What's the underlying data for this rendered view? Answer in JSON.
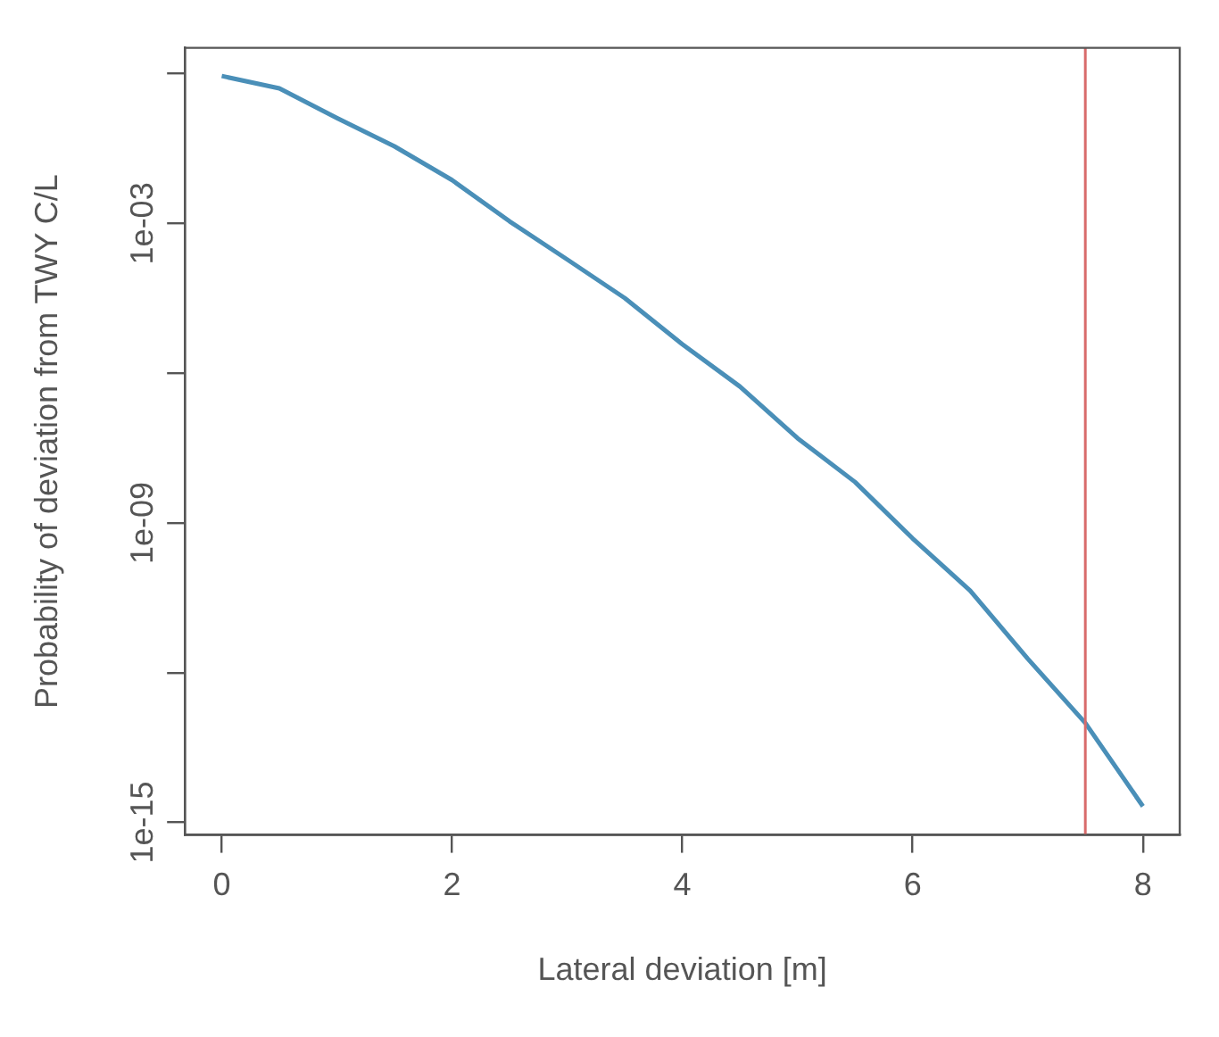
{
  "chart_data": {
    "type": "line",
    "xlabel": "Lateral deviation [m]",
    "ylabel": "Probability of deviation from TWY C/L",
    "x": [
      0,
      0.5,
      1,
      1.5,
      2,
      2.5,
      3,
      3.5,
      4,
      4.5,
      5,
      5.5,
      6,
      6.5,
      7,
      7.5,
      8
    ],
    "series": [
      {
        "color": "#4a8fb8",
        "values": [
          0.9,
          0.51,
          0.13,
          0.035,
          0.0074,
          0.0011,
          0.00019,
          3.2e-05,
          3.8e-06,
          5.4e-07,
          5e-08,
          6.6e-09,
          4.9e-10,
          4.4e-11,
          1.9e-12,
          9.8e-14,
          2.1e-15
        ]
      }
    ],
    "log": "y",
    "xlim": [
      -0.32,
      8.32
    ],
    "xticks": [
      0,
      2,
      4,
      6,
      8
    ],
    "ylim": [
      5.6e-16,
      3.3
    ],
    "yticks": [
      {
        "value": 1,
        "label": null
      },
      {
        "value": 0.001,
        "label": "1e-03"
      },
      {
        "value": 1e-06,
        "label": null
      },
      {
        "value": 1e-09,
        "label": "1e-09"
      },
      {
        "value": 1e-12,
        "label": null
      },
      {
        "value": 1e-15,
        "label": "1e-15"
      }
    ],
    "ref_lines": [
      {
        "axis": "x",
        "value": 7.5,
        "color": "#d96b6b"
      }
    ],
    "grid": false,
    "legend": false,
    "marker": "none",
    "line_style": "solid"
  }
}
